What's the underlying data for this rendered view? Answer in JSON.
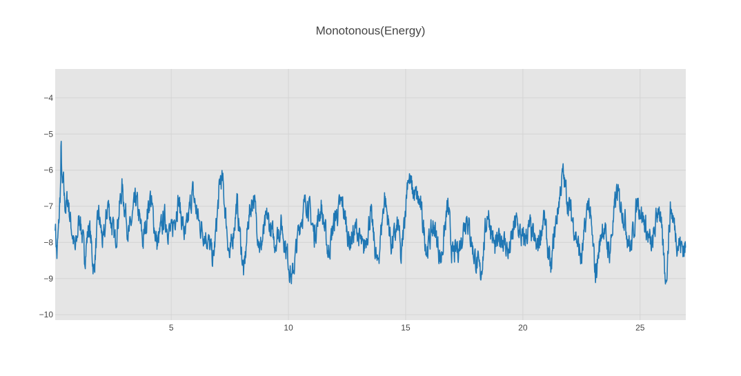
{
  "chart_data": {
    "type": "line",
    "title": "Monotonous(Energy)",
    "xlabel": "",
    "ylabel": "",
    "xlim": [
      0.05,
      26.95
    ],
    "ylim": [
      -10.15,
      -3.2
    ],
    "x_ticks": [
      5,
      10,
      15,
      20,
      25
    ],
    "x_tick_labels": [
      "5",
      "10",
      "15",
      "20",
      "25"
    ],
    "y_ticks": [
      -4,
      -5,
      -6,
      -7,
      -8,
      -9,
      -10
    ],
    "y_tick_labels": [
      "−4",
      "−5",
      "−6",
      "−7",
      "−8",
      "−9",
      "−10"
    ],
    "grid": true,
    "legend": "none",
    "colors": {
      "plot_bg": "#e5e5e5",
      "grid": "#d4d4d4",
      "line": "#1f77b4",
      "text": "#444444"
    },
    "series": [
      {
        "x_start": 0.05,
        "x_end": 26.95,
        "keypoints_x": [
          0.05,
          0.12,
          0.2,
          0.28,
          0.3,
          0.35,
          0.4,
          0.45,
          0.5,
          0.6,
          0.7,
          0.8,
          0.9,
          1.1,
          1.3,
          1.5,
          1.7,
          1.9,
          2.1,
          2.3,
          2.6,
          2.9,
          3.2,
          3.5,
          3.8,
          4.1,
          4.4,
          4.7,
          5.0,
          5.3,
          5.6,
          5.9,
          6.2,
          6.5,
          6.8,
          7.1,
          7.2,
          7.5,
          7.8,
          8.1,
          8.3,
          8.5,
          8.8,
          9.1,
          9.4,
          9.7,
          10.0,
          10.15,
          10.5,
          10.8,
          11.1,
          11.4,
          11.7,
          12.0,
          12.3,
          12.6,
          12.9,
          13.2,
          13.5,
          13.8,
          14.1,
          14.4,
          14.7,
          14.8,
          15.0,
          15.1,
          15.3,
          15.6,
          15.9,
          16.2,
          16.5,
          16.8,
          17.0,
          17.3,
          17.6,
          17.9,
          18.2,
          18.5,
          18.8,
          19.1,
          19.4,
          19.7,
          20.0,
          20.3,
          20.6,
          20.9,
          21.2,
          21.3,
          21.7,
          21.9,
          22.2,
          22.5,
          22.8,
          23.1,
          23.4,
          23.7,
          24.0,
          24.3,
          24.6,
          24.9,
          25.2,
          25.5,
          25.8,
          26.1,
          26.3,
          26.6,
          26.95
        ],
        "keypoints_y": [
          -7.4,
          -8.4,
          -7.6,
          -6.4,
          -5.25,
          -6.6,
          -6.4,
          -6.9,
          -7.0,
          -6.8,
          -7.4,
          -7.8,
          -8.3,
          -7.2,
          -8.4,
          -7.5,
          -8.8,
          -7.2,
          -8.1,
          -6.9,
          -8.0,
          -6.5,
          -7.8,
          -6.8,
          -8.0,
          -6.7,
          -8.1,
          -7.3,
          -7.8,
          -6.8,
          -7.9,
          -6.6,
          -7.5,
          -7.8,
          -8.5,
          -6.2,
          -6.4,
          -8.5,
          -6.9,
          -8.9,
          -7.3,
          -6.7,
          -8.2,
          -7.3,
          -8.0,
          -7.5,
          -8.5,
          -9.05,
          -7.4,
          -6.8,
          -7.8,
          -7.0,
          -8.3,
          -7.3,
          -6.9,
          -8.0,
          -7.6,
          -8.3,
          -7.2,
          -8.7,
          -6.7,
          -8.1,
          -7.5,
          -8.6,
          -6.95,
          -6.1,
          -6.6,
          -6.9,
          -8.2,
          -7.5,
          -8.5,
          -7.0,
          -8.4,
          -8.1,
          -7.2,
          -8.3,
          -8.9,
          -7.1,
          -8.2,
          -7.8,
          -8.3,
          -7.4,
          -8.0,
          -7.6,
          -8.2,
          -7.3,
          -8.9,
          -8.0,
          -6.1,
          -6.8,
          -7.6,
          -8.5,
          -6.8,
          -8.9,
          -7.5,
          -8.3,
          -6.6,
          -7.2,
          -8.2,
          -6.8,
          -7.5,
          -8.2,
          -6.9,
          -9.1,
          -7.0,
          -8.0,
          -8.2
        ]
      }
    ]
  }
}
